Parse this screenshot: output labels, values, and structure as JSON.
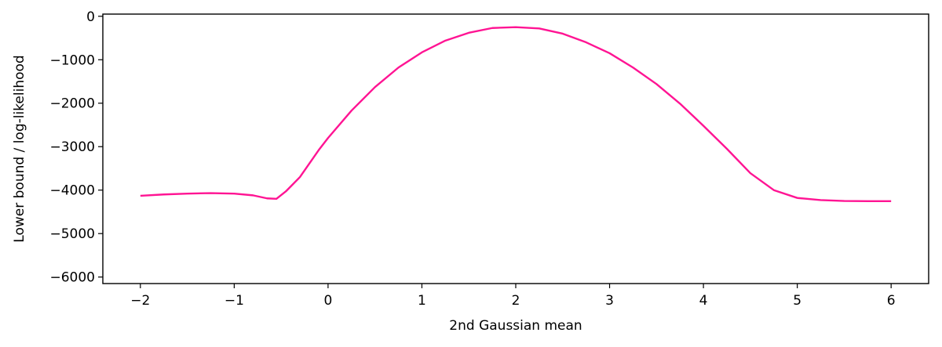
{
  "chart_data": {
    "type": "line",
    "title": "",
    "xlabel": "2nd Gaussian mean",
    "ylabel": "Lower bound / log-likelihood",
    "xlim": [
      -2.4,
      6.4
    ],
    "ylim": [
      -6150,
      50
    ],
    "x_ticks": [
      -2,
      -1,
      0,
      1,
      2,
      3,
      4,
      5,
      6
    ],
    "x_tick_labels": [
      "−2",
      "−1",
      "0",
      "1",
      "2",
      "3",
      "4",
      "5",
      "6"
    ],
    "y_ticks": [
      0,
      -1000,
      -2000,
      -3000,
      -4000,
      -5000,
      -6000
    ],
    "y_tick_labels": [
      "0",
      "−1000",
      "−2000",
      "−3000",
      "−4000",
      "−5000",
      "−6000"
    ],
    "grid": false,
    "series": [
      {
        "color": "#ff1493",
        "x": [
          -2.0,
          -1.75,
          -1.5,
          -1.25,
          -1.0,
          -0.8,
          -0.65,
          -0.55,
          -0.45,
          -0.3,
          -0.1,
          0.0,
          0.25,
          0.5,
          0.75,
          1.0,
          1.25,
          1.5,
          1.75,
          2.0,
          2.25,
          2.5,
          2.75,
          3.0,
          3.25,
          3.5,
          3.75,
          4.0,
          4.25,
          4.5,
          4.75,
          5.0,
          5.25,
          5.5,
          5.75,
          6.0
        ],
        "y": [
          -4130,
          -4100,
          -4080,
          -4070,
          -4080,
          -4120,
          -4190,
          -4200,
          -4030,
          -3700,
          -3080,
          -2800,
          -2170,
          -1630,
          -1180,
          -830,
          -560,
          -380,
          -270,
          -250,
          -280,
          -400,
          -600,
          -850,
          -1180,
          -1560,
          -2010,
          -2520,
          -3050,
          -3610,
          -4000,
          -4180,
          -4230,
          -4250,
          -4255,
          -4255
        ]
      }
    ]
  }
}
